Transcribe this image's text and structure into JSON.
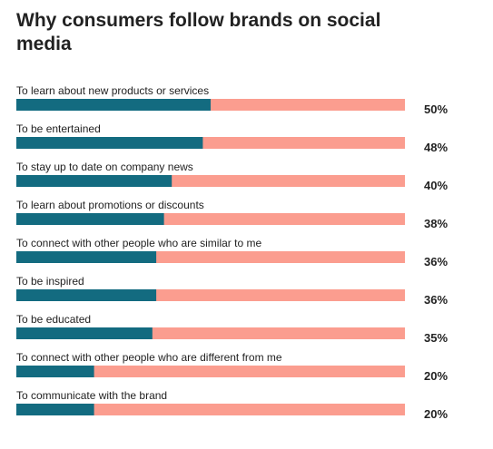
{
  "chart_data": {
    "type": "bar",
    "orientation": "horizontal",
    "stacked_against_total": true,
    "title": "Why consumers follow brands on social media",
    "categories": [
      "To learn about new products or services",
      "To be entertained",
      "To stay up to date on company news",
      "To learn about promotions or discounts",
      "To connect with other people who are similar to me",
      "To be inspired",
      "To be educated",
      "To connect with other people who are different from me",
      "To communicate with the brand"
    ],
    "values": [
      50,
      48,
      40,
      38,
      36,
      36,
      35,
      20,
      20
    ],
    "value_labels": [
      "50%",
      "48%",
      "40%",
      "38%",
      "36%",
      "36%",
      "35%",
      "20%",
      "20%"
    ],
    "xlim": [
      0,
      100
    ],
    "grid": false,
    "legend": "none",
    "colors": {
      "value": "#136b80",
      "remainder": "#fb9d8f",
      "text": "#222222"
    }
  }
}
